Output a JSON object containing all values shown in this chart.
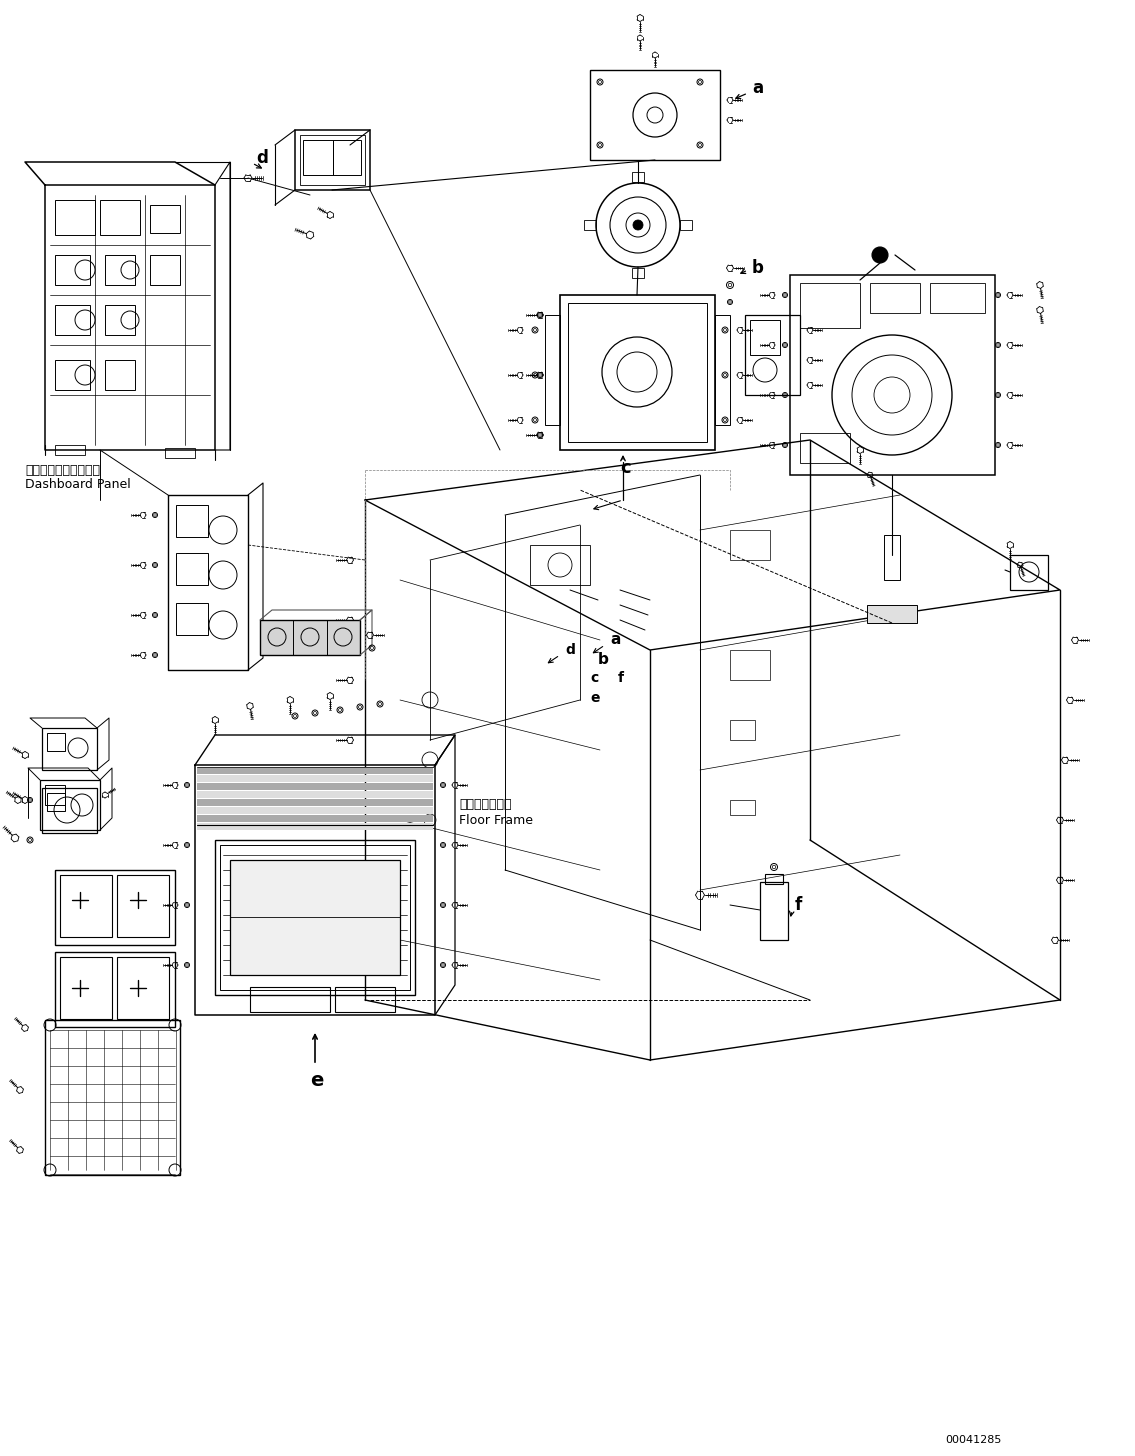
{
  "part_number": "00041285",
  "background_color": "#ffffff",
  "line_color": "#000000",
  "figsize": [
    11.35,
    14.56
  ],
  "dpi": 100,
  "labels": {
    "dashboard_jp": "ダッシュボードパネル",
    "dashboard_en": "Dashboard Panel",
    "floor_frame_jp": "フロアフレーム",
    "floor_frame_en": "Floor Frame",
    "ref_a": "a",
    "ref_b": "b",
    "ref_c": "c",
    "ref_d": "d",
    "ref_e": "e",
    "ref_f": "f"
  }
}
